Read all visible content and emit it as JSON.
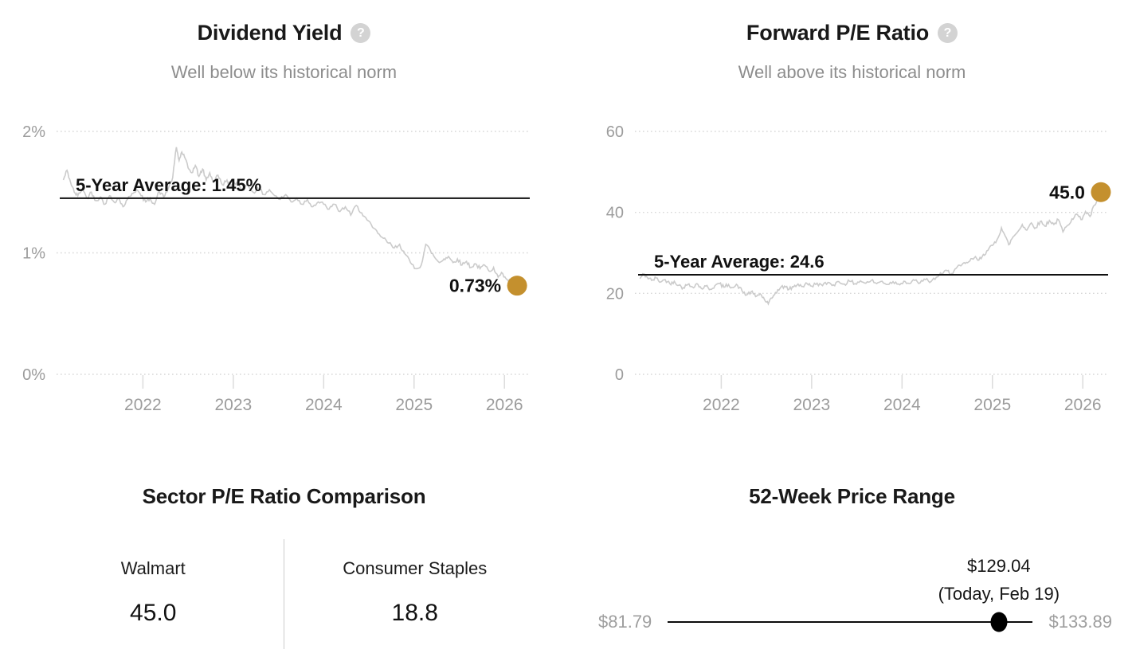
{
  "colors": {
    "accent_gold": "#C4902E",
    "series_line": "#cbcbcb",
    "average_line": "#111111",
    "axis_label": "#9c9c9c",
    "gridline": "#d7d7d7",
    "tick": "#dcdcdc",
    "title": "#191919",
    "subtitle": "#8d8d8d",
    "help_icon_bg": "#d3d3d3",
    "range_dot": "#000000"
  },
  "icons": {
    "help_glyph": "?"
  },
  "chart_data": [
    {
      "id": "dividend_yield",
      "type": "line",
      "title": "Dividend Yield",
      "subtitle": "Well below its historical norm",
      "help_icon": "question-icon",
      "ylim": [
        0,
        2
      ],
      "yticks": [
        {
          "v": 2,
          "label": "2%"
        },
        {
          "v": 1,
          "label": "1%"
        },
        {
          "v": 0,
          "label": "0%"
        }
      ],
      "xlim": [
        2021.08,
        2026.28
      ],
      "xticks": [
        "2022",
        "2023",
        "2024",
        "2025",
        "2026"
      ],
      "average": {
        "value": 1.45,
        "label": "5-Year Average: 1.45%"
      },
      "current": {
        "value": 0.73,
        "label": "0.73%"
      },
      "series": [
        [
          2021.12,
          1.6
        ],
        [
          2021.16,
          1.68
        ],
        [
          2021.2,
          1.58
        ],
        [
          2021.24,
          1.5
        ],
        [
          2021.28,
          1.47
        ],
        [
          2021.33,
          1.53
        ],
        [
          2021.38,
          1.45
        ],
        [
          2021.43,
          1.5
        ],
        [
          2021.48,
          1.43
        ],
        [
          2021.53,
          1.46
        ],
        [
          2021.58,
          1.4
        ],
        [
          2021.63,
          1.47
        ],
        [
          2021.68,
          1.42
        ],
        [
          2021.73,
          1.45
        ],
        [
          2021.78,
          1.38
        ],
        [
          2021.83,
          1.44
        ],
        [
          2021.88,
          1.49
        ],
        [
          2021.93,
          1.52
        ],
        [
          2021.98,
          1.47
        ],
        [
          2022.03,
          1.42
        ],
        [
          2022.08,
          1.45
        ],
        [
          2022.13,
          1.4
        ],
        [
          2022.18,
          1.51
        ],
        [
          2022.23,
          1.46
        ],
        [
          2022.28,
          1.53
        ],
        [
          2022.33,
          1.62
        ],
        [
          2022.37,
          1.87
        ],
        [
          2022.4,
          1.76
        ],
        [
          2022.43,
          1.83
        ],
        [
          2022.46,
          1.79
        ],
        [
          2022.5,
          1.7
        ],
        [
          2022.54,
          1.66
        ],
        [
          2022.58,
          1.72
        ],
        [
          2022.62,
          1.63
        ],
        [
          2022.66,
          1.69
        ],
        [
          2022.7,
          1.6
        ],
        [
          2022.74,
          1.66
        ],
        [
          2022.78,
          1.58
        ],
        [
          2022.83,
          1.64
        ],
        [
          2022.88,
          1.56
        ],
        [
          2022.93,
          1.6
        ],
        [
          2022.98,
          1.55
        ],
        [
          2023.04,
          1.58
        ],
        [
          2023.1,
          1.52
        ],
        [
          2023.16,
          1.56
        ],
        [
          2023.22,
          1.5
        ],
        [
          2023.28,
          1.53
        ],
        [
          2023.34,
          1.48
        ],
        [
          2023.4,
          1.52
        ],
        [
          2023.46,
          1.47
        ],
        [
          2023.52,
          1.44
        ],
        [
          2023.58,
          1.48
        ],
        [
          2023.64,
          1.42
        ],
        [
          2023.7,
          1.45
        ],
        [
          2023.76,
          1.4
        ],
        [
          2023.82,
          1.44
        ],
        [
          2023.88,
          1.38
        ],
        [
          2023.94,
          1.42
        ],
        [
          2024.0,
          1.4
        ],
        [
          2024.06,
          1.36
        ],
        [
          2024.12,
          1.4
        ],
        [
          2024.18,
          1.34
        ],
        [
          2024.24,
          1.38
        ],
        [
          2024.3,
          1.31
        ],
        [
          2024.36,
          1.39
        ],
        [
          2024.42,
          1.33
        ],
        [
          2024.48,
          1.27
        ],
        [
          2024.54,
          1.21
        ],
        [
          2024.6,
          1.16
        ],
        [
          2024.66,
          1.12
        ],
        [
          2024.72,
          1.08
        ],
        [
          2024.78,
          1.04
        ],
        [
          2024.84,
          1.07
        ],
        [
          2024.9,
          0.99
        ],
        [
          2024.96,
          0.92
        ],
        [
          2025.02,
          0.87
        ],
        [
          2025.08,
          0.9
        ],
        [
          2025.13,
          1.07
        ],
        [
          2025.18,
          1.02
        ],
        [
          2025.23,
          0.96
        ],
        [
          2025.28,
          0.92
        ],
        [
          2025.33,
          0.95
        ],
        [
          2025.38,
          0.97
        ],
        [
          2025.43,
          0.92
        ],
        [
          2025.48,
          0.95
        ],
        [
          2025.53,
          0.9
        ],
        [
          2025.58,
          0.93
        ],
        [
          2025.63,
          0.88
        ],
        [
          2025.68,
          0.91
        ],
        [
          2025.73,
          0.87
        ],
        [
          2025.78,
          0.9
        ],
        [
          2025.83,
          0.85
        ],
        [
          2025.88,
          0.88
        ],
        [
          2025.93,
          0.8
        ],
        [
          2025.98,
          0.83
        ],
        [
          2026.03,
          0.78
        ],
        [
          2026.08,
          0.76
        ],
        [
          2026.14,
          0.73
        ]
      ]
    },
    {
      "id": "forward_pe",
      "type": "line",
      "title": "Forward P/E Ratio",
      "subtitle": "Well above its historical norm",
      "help_icon": "question-icon",
      "ylim": [
        0,
        60
      ],
      "yticks": [
        {
          "v": 60,
          "label": "60"
        },
        {
          "v": 40,
          "label": "40"
        },
        {
          "v": 20,
          "label": "20"
        },
        {
          "v": 0,
          "label": "0"
        }
      ],
      "xlim": [
        2021.08,
        2026.28
      ],
      "xticks": [
        "2022",
        "2023",
        "2024",
        "2025",
        "2026"
      ],
      "average": {
        "value": 24.6,
        "label": "5-Year Average: 24.6"
      },
      "current": {
        "value": 45.0,
        "label": "45.0"
      },
      "series": [
        [
          2021.1,
          23.6
        ],
        [
          2021.14,
          24.8
        ],
        [
          2021.18,
          24.0
        ],
        [
          2021.23,
          23.2
        ],
        [
          2021.28,
          23.8
        ],
        [
          2021.33,
          22.8
        ],
        [
          2021.38,
          23.4
        ],
        [
          2021.43,
          22.4
        ],
        [
          2021.48,
          23.0
        ],
        [
          2021.53,
          22.0
        ],
        [
          2021.58,
          21.4
        ],
        [
          2021.63,
          22.2
        ],
        [
          2021.68,
          21.6
        ],
        [
          2021.73,
          22.4
        ],
        [
          2021.78,
          21.2
        ],
        [
          2021.83,
          21.8
        ],
        [
          2021.88,
          21.0
        ],
        [
          2021.93,
          21.9
        ],
        [
          2021.98,
          22.4
        ],
        [
          2022.03,
          21.5
        ],
        [
          2022.08,
          22.2
        ],
        [
          2022.13,
          21.4
        ],
        [
          2022.18,
          22.0
        ],
        [
          2022.23,
          20.6
        ],
        [
          2022.28,
          19.6
        ],
        [
          2022.33,
          20.4
        ],
        [
          2022.38,
          19.2
        ],
        [
          2022.43,
          19.9
        ],
        [
          2022.48,
          18.4
        ],
        [
          2022.52,
          17.4
        ],
        [
          2022.56,
          18.8
        ],
        [
          2022.6,
          20.2
        ],
        [
          2022.65,
          21.2
        ],
        [
          2022.7,
          21.8
        ],
        [
          2022.75,
          21.0
        ],
        [
          2022.8,
          21.6
        ],
        [
          2022.85,
          22.3
        ],
        [
          2022.9,
          21.7
        ],
        [
          2022.95,
          22.4
        ],
        [
          2023.0,
          21.8
        ],
        [
          2023.06,
          22.5
        ],
        [
          2023.12,
          21.9
        ],
        [
          2023.18,
          22.7
        ],
        [
          2023.24,
          22.1
        ],
        [
          2023.3,
          22.9
        ],
        [
          2023.36,
          22.3
        ],
        [
          2023.42,
          23.0
        ],
        [
          2023.48,
          22.4
        ],
        [
          2023.54,
          23.1
        ],
        [
          2023.6,
          22.5
        ],
        [
          2023.66,
          23.2
        ],
        [
          2023.72,
          22.4
        ],
        [
          2023.78,
          23.0
        ],
        [
          2023.84,
          22.2
        ],
        [
          2023.9,
          22.9
        ],
        [
          2023.96,
          22.3
        ],
        [
          2024.02,
          23.0
        ],
        [
          2024.08,
          22.4
        ],
        [
          2024.14,
          23.2
        ],
        [
          2024.2,
          22.6
        ],
        [
          2024.26,
          23.4
        ],
        [
          2024.32,
          22.9
        ],
        [
          2024.38,
          24.0
        ],
        [
          2024.44,
          24.8
        ],
        [
          2024.5,
          25.6
        ],
        [
          2024.55,
          24.9
        ],
        [
          2024.6,
          26.2
        ],
        [
          2024.65,
          26.8
        ],
        [
          2024.7,
          27.4
        ],
        [
          2024.75,
          28.0
        ],
        [
          2024.8,
          28.8
        ],
        [
          2024.85,
          28.2
        ],
        [
          2024.9,
          29.6
        ],
        [
          2024.95,
          30.6
        ],
        [
          2025.0,
          31.8
        ],
        [
          2025.05,
          33.2
        ],
        [
          2025.1,
          36.2
        ],
        [
          2025.14,
          34.2
        ],
        [
          2025.18,
          32.0
        ],
        [
          2025.23,
          34.0
        ],
        [
          2025.28,
          35.2
        ],
        [
          2025.33,
          37.0
        ],
        [
          2025.38,
          35.6
        ],
        [
          2025.43,
          37.4
        ],
        [
          2025.48,
          36.2
        ],
        [
          2025.53,
          37.8
        ],
        [
          2025.58,
          36.6
        ],
        [
          2025.63,
          38.0
        ],
        [
          2025.68,
          37.0
        ],
        [
          2025.73,
          38.2
        ],
        [
          2025.78,
          35.2
        ],
        [
          2025.83,
          36.8
        ],
        [
          2025.88,
          38.4
        ],
        [
          2025.93,
          39.6
        ],
        [
          2025.98,
          38.2
        ],
        [
          2026.03,
          40.2
        ],
        [
          2026.08,
          39.0
        ],
        [
          2026.13,
          41.8
        ],
        [
          2026.17,
          43.2
        ],
        [
          2026.2,
          45.0
        ]
      ]
    },
    {
      "id": "sector_pe_comparison",
      "type": "table",
      "title": "Sector P/E Ratio Comparison",
      "columns": [
        {
          "label": "Walmart",
          "value": "45.0"
        },
        {
          "label": "Consumer Staples",
          "value": "18.8"
        }
      ]
    },
    {
      "id": "price_range_52w",
      "type": "range",
      "title": "52-Week Price Range",
      "min": 81.79,
      "max": 133.89,
      "current": 129.04,
      "min_label": "$81.79",
      "max_label": "$133.89",
      "current_label": "$129.04",
      "current_sublabel": "(Today, Feb 19)"
    }
  ]
}
